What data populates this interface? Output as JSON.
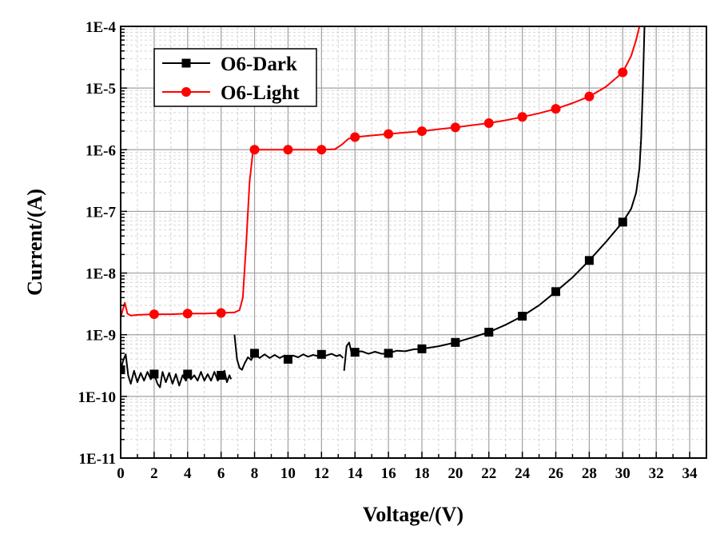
{
  "chart_data": {
    "type": "line",
    "title": "",
    "xlabel": "Voltage/(V)",
    "ylabel": "Current/(A)",
    "xlim": [
      0,
      35
    ],
    "ylim": [
      1e-11,
      0.0001
    ],
    "yscale": "log",
    "grid": true,
    "legend_position": "top-left",
    "x_ticks": [
      0,
      2,
      4,
      6,
      8,
      10,
      12,
      14,
      16,
      18,
      20,
      22,
      24,
      26,
      28,
      30,
      32,
      34
    ],
    "y_ticks": [
      1e-11,
      1e-10,
      1e-09,
      1e-08,
      1e-07,
      1e-06,
      1e-05,
      0.0001
    ],
    "y_tick_labels": [
      "1E-11",
      "1E-10",
      "1E-9",
      "1E-8",
      "1E-7",
      "1E-6",
      "1E-5",
      "1E-4"
    ],
    "series": [
      {
        "name": "O6-Dark",
        "color": "#000000",
        "marker": "square",
        "markers": [
          [
            0,
            2.7e-10
          ],
          [
            2,
            2.3e-10
          ],
          [
            4,
            2.3e-10
          ],
          [
            6,
            2.2e-10
          ],
          [
            8,
            5e-10
          ],
          [
            10,
            4e-10
          ],
          [
            12,
            4.8e-10
          ],
          [
            14,
            5.2e-10
          ],
          [
            16,
            5e-10
          ],
          [
            18,
            5.9e-10
          ],
          [
            20,
            7.5e-10
          ],
          [
            22,
            1.1e-09
          ],
          [
            24,
            2e-09
          ],
          [
            26,
            5e-09
          ],
          [
            28,
            1.6e-08
          ],
          [
            30,
            6.7e-08
          ]
        ],
        "segments": [
          [
            [
              0,
              2.7e-10
            ],
            [
              0.15,
              3.8e-10
            ],
            [
              0.3,
              4.8e-10
            ],
            [
              0.45,
              2.2e-10
            ],
            [
              0.6,
              1.6e-10
            ],
            [
              0.8,
              2.6e-10
            ],
            [
              1.0,
              1.7e-10
            ],
            [
              1.2,
              2.4e-10
            ],
            [
              1.4,
              1.8e-10
            ],
            [
              1.6,
              2.5e-10
            ],
            [
              1.8,
              1.9e-10
            ],
            [
              2.0,
              2.3e-10
            ],
            [
              2.2,
              1.6e-10
            ],
            [
              2.35,
              1.4e-10
            ],
            [
              2.5,
              2.5e-10
            ],
            [
              2.7,
              1.7e-10
            ],
            [
              2.9,
              2.4e-10
            ],
            [
              3.1,
              1.6e-10
            ],
            [
              3.3,
              2.3e-10
            ],
            [
              3.5,
              1.5e-10
            ],
            [
              3.7,
              2.2e-10
            ],
            [
              3.9,
              1.8e-10
            ],
            [
              4.0,
              2.3e-10
            ],
            [
              4.2,
              1.9e-10
            ],
            [
              4.4,
              2.2e-10
            ],
            [
              4.6,
              1.8e-10
            ],
            [
              4.8,
              2.5e-10
            ],
            [
              5.0,
              1.8e-10
            ],
            [
              5.2,
              2.3e-10
            ],
            [
              5.4,
              1.8e-10
            ],
            [
              5.6,
              2.5e-10
            ],
            [
              5.8,
              1.8e-10
            ],
            [
              6.0,
              2.2e-10
            ],
            [
              6.2,
              2.6e-10
            ],
            [
              6.35,
              1.7e-10
            ],
            [
              6.5,
              2.2e-10
            ],
            [
              6.6,
              1.9e-10
            ]
          ],
          [
            [
              6.8,
              1e-09
            ],
            [
              6.95,
              4e-10
            ],
            [
              7.1,
              2.9e-10
            ],
            [
              7.25,
              2.7e-10
            ],
            [
              7.4,
              3.4e-10
            ],
            [
              7.6,
              4.3e-10
            ],
            [
              7.8,
              3.9e-10
            ],
            [
              8.0,
              5e-10
            ],
            [
              8.3,
              4.2e-10
            ],
            [
              8.6,
              4.8e-10
            ],
            [
              8.9,
              4.2e-10
            ],
            [
              9.2,
              4.7e-10
            ],
            [
              9.5,
              4.2e-10
            ],
            [
              9.8,
              4.6e-10
            ],
            [
              10.0,
              4e-10
            ],
            [
              10.3,
              4.6e-10
            ],
            [
              10.6,
              4.3e-10
            ],
            [
              10.9,
              4.8e-10
            ],
            [
              11.2,
              4.4e-10
            ],
            [
              11.5,
              4.7e-10
            ],
            [
              11.8,
              4.5e-10
            ],
            [
              12.0,
              4.8e-10
            ],
            [
              12.3,
              4.6e-10
            ],
            [
              12.6,
              4.9e-10
            ],
            [
              12.9,
              4.5e-10
            ],
            [
              13.1,
              4.7e-10
            ],
            [
              13.3,
              4.2e-10
            ]
          ],
          [
            [
              13.35,
              2.6e-10
            ],
            [
              13.5,
              6.5e-10
            ],
            [
              13.65,
              7.5e-10
            ],
            [
              13.8,
              5e-10
            ],
            [
              14.0,
              5.2e-10
            ],
            [
              14.4,
              5.4e-10
            ],
            [
              14.8,
              4.9e-10
            ],
            [
              15.2,
              5.3e-10
            ],
            [
              15.6,
              4.9e-10
            ],
            [
              16.0,
              5e-10
            ],
            [
              16.5,
              5.5e-10
            ],
            [
              17.0,
              5.4e-10
            ],
            [
              17.5,
              5.8e-10
            ],
            [
              18.0,
              5.9e-10
            ],
            [
              19.0,
              6.5e-10
            ],
            [
              20.0,
              7.5e-10
            ],
            [
              21.0,
              9e-10
            ],
            [
              22.0,
              1.1e-09
            ],
            [
              23.0,
              1.45e-09
            ],
            [
              24.0,
              2e-09
            ],
            [
              25.0,
              3e-09
            ],
            [
              26.0,
              5e-09
            ],
            [
              27.0,
              8.5e-09
            ],
            [
              28.0,
              1.6e-08
            ],
            [
              29.0,
              3.2e-08
            ],
            [
              30.0,
              6.7e-08
            ],
            [
              30.5,
              1.1e-07
            ],
            [
              30.8,
              2e-07
            ],
            [
              31.0,
              5e-07
            ],
            [
              31.1,
              1.5e-06
            ],
            [
              31.2,
              1e-05
            ],
            [
              31.3,
              0.0001
            ]
          ]
        ]
      },
      {
        "name": "O6-Light",
        "color": "#ff0000",
        "marker": "circle",
        "markers": [
          [
            2,
            2.15e-09
          ],
          [
            4,
            2.2e-09
          ],
          [
            6,
            2.25e-09
          ],
          [
            8,
            1e-06
          ],
          [
            10,
            1e-06
          ],
          [
            12,
            1e-06
          ],
          [
            14,
            1.6e-06
          ],
          [
            16,
            1.8e-06
          ],
          [
            18,
            2e-06
          ],
          [
            20,
            2.3e-06
          ],
          [
            22,
            2.7e-06
          ],
          [
            24,
            3.4e-06
          ],
          [
            26,
            4.6e-06
          ],
          [
            28,
            7.3e-06
          ],
          [
            30,
            1.8e-05
          ]
        ],
        "segments": [
          [
            [
              0,
              1.9e-09
            ],
            [
              0.1,
              2.4e-09
            ],
            [
              0.25,
              3.3e-09
            ],
            [
              0.4,
              2.2e-09
            ],
            [
              0.6,
              2.05e-09
            ],
            [
              1.0,
              2.1e-09
            ],
            [
              2.0,
              2.15e-09
            ],
            [
              3.0,
              2.15e-09
            ],
            [
              4.0,
              2.2e-09
            ],
            [
              5.0,
              2.2e-09
            ],
            [
              6.0,
              2.25e-09
            ],
            [
              6.8,
              2.3e-09
            ],
            [
              7.1,
              2.5e-09
            ],
            [
              7.3,
              4e-09
            ],
            [
              7.5,
              3e-08
            ],
            [
              7.7,
              3e-07
            ],
            [
              7.9,
              9e-07
            ],
            [
              8.0,
              1e-06
            ],
            [
              9.0,
              1e-06
            ],
            [
              10.0,
              1e-06
            ],
            [
              11.0,
              1e-06
            ],
            [
              12.0,
              1e-06
            ],
            [
              12.8,
              1.02e-06
            ],
            [
              13.2,
              1.2e-06
            ],
            [
              13.6,
              1.5e-06
            ],
            [
              14.0,
              1.6e-06
            ],
            [
              15.0,
              1.7e-06
            ],
            [
              16.0,
              1.8e-06
            ],
            [
              17.0,
              1.9e-06
            ],
            [
              18.0,
              2e-06
            ],
            [
              19.0,
              2.15e-06
            ],
            [
              20.0,
              2.3e-06
            ],
            [
              21.0,
              2.5e-06
            ],
            [
              22.0,
              2.7e-06
            ],
            [
              23.0,
              3e-06
            ],
            [
              24.0,
              3.4e-06
            ],
            [
              25.0,
              3.9e-06
            ],
            [
              26.0,
              4.6e-06
            ],
            [
              27.0,
              5.7e-06
            ],
            [
              28.0,
              7.3e-06
            ],
            [
              29.0,
              1.05e-05
            ],
            [
              30.0,
              1.8e-05
            ],
            [
              30.5,
              3.3e-05
            ],
            [
              30.8,
              6e-05
            ],
            [
              31.0,
              0.0001
            ]
          ]
        ]
      }
    ]
  }
}
